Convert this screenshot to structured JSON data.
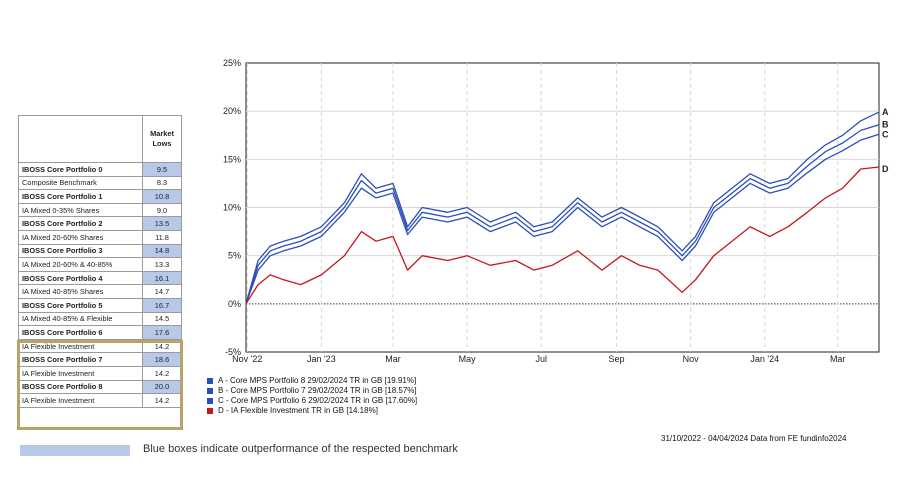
{
  "table": {
    "header": "Market Lows",
    "rows": [
      {
        "label": "IBOSS Core Portfolio 0",
        "value": "9.5",
        "bold": true,
        "highlight": true
      },
      {
        "label": "Composite Benchmark",
        "value": "8.3",
        "bold": false,
        "highlight": false
      },
      {
        "label": "IBOSS Core Portfolio 1",
        "value": "10.8",
        "bold": true,
        "highlight": true
      },
      {
        "label": "IA Mixed 0-35% Shares",
        "value": "9.0",
        "bold": false,
        "highlight": false
      },
      {
        "label": "IBOSS Core Portfolio 2",
        "value": "13.5",
        "bold": true,
        "highlight": true
      },
      {
        "label": "IA Mixed 20-60% Shares",
        "value": "11.8",
        "bold": false,
        "highlight": false
      },
      {
        "label": "IBOSS Core Portfolio 3",
        "value": "14.8",
        "bold": true,
        "highlight": true
      },
      {
        "label": "IA Mixed 20-60% & 40-85%",
        "value": "13.3",
        "bold": false,
        "highlight": false
      },
      {
        "label": "IBOSS Core Portfolio 4",
        "value": "16.1",
        "bold": true,
        "highlight": true
      },
      {
        "label": "IA Mixed 40-85% Shares",
        "value": "14.7",
        "bold": false,
        "highlight": false
      },
      {
        "label": "IBOSS Core Portfolio 5",
        "value": "16.7",
        "bold": true,
        "highlight": true
      },
      {
        "label": "IA Mixed 40-85% & Flexible",
        "value": "14.5",
        "bold": false,
        "highlight": false
      },
      {
        "label": "IBOSS Core Portfolio 6",
        "value": "17.6",
        "bold": true,
        "highlight": true
      },
      {
        "label": "IA Flexible Investment",
        "value": "14.2",
        "bold": false,
        "highlight": false
      },
      {
        "label": "IBOSS Core Portfolio 7",
        "value": "18.6",
        "bold": true,
        "highlight": true
      },
      {
        "label": "IA Flexible Investment",
        "value": "14.2",
        "bold": false,
        "highlight": false
      },
      {
        "label": "IBOSS Core Portfolio 8",
        "value": "20.0",
        "bold": true,
        "highlight": true
      },
      {
        "label": "IA Flexible Investment",
        "value": "14.2",
        "bold": false,
        "highlight": false
      }
    ]
  },
  "note": "Blue boxes indicate outperformance of the respected benchmark",
  "source": "31/10/2022 - 04/04/2024 Data from FE fundinfo2024",
  "colors": {
    "highlight": "#b7c8e8",
    "blue": "#2b4fb8",
    "red": "#c8161d",
    "gold": "#b8a46a"
  },
  "chart_data": {
    "type": "line",
    "x_range": [
      "2022-10-31",
      "2024-04-04"
    ],
    "ylim": [
      -5,
      25
    ],
    "yticks": [
      "25%",
      "20%",
      "15%",
      "10%",
      "5%",
      "0%",
      "-5%"
    ],
    "ytick_values": [
      25,
      20,
      15,
      10,
      5,
      0,
      -5
    ],
    "xtick_labels": [
      "Nov '22",
      "Jan '23",
      "Mar",
      "May",
      "Jul",
      "Sep",
      "Nov",
      "Jan '24",
      "Mar"
    ],
    "xtick_dates": [
      "2022-11-01",
      "2023-01-01",
      "2023-03-01",
      "2023-05-01",
      "2023-07-01",
      "2023-09-01",
      "2023-11-01",
      "2024-01-01",
      "2024-03-01"
    ],
    "grid": true,
    "series": [
      {
        "name": "A - Core MPS Portfolio 8 29/02/2024 TR in GB [19.91%]",
        "end_label": "A",
        "color": "#2b4fb8",
        "points": [
          [
            "2022-10-31",
            0
          ],
          [
            "2022-11-10",
            4.5
          ],
          [
            "2022-11-20",
            6
          ],
          [
            "2022-12-01",
            6.5
          ],
          [
            "2022-12-15",
            7
          ],
          [
            "2023-01-01",
            8
          ],
          [
            "2023-01-20",
            10.5
          ],
          [
            "2023-02-03",
            13.5
          ],
          [
            "2023-02-15",
            12
          ],
          [
            "2023-03-01",
            12.5
          ],
          [
            "2023-03-13",
            8
          ],
          [
            "2023-03-25",
            10
          ],
          [
            "2023-04-15",
            9.5
          ],
          [
            "2023-05-01",
            10
          ],
          [
            "2023-05-20",
            8.5
          ],
          [
            "2023-06-10",
            9.5
          ],
          [
            "2023-06-25",
            8
          ],
          [
            "2023-07-10",
            8.5
          ],
          [
            "2023-07-31",
            11
          ],
          [
            "2023-08-20",
            9
          ],
          [
            "2023-09-05",
            10
          ],
          [
            "2023-09-20",
            9
          ],
          [
            "2023-10-05",
            8
          ],
          [
            "2023-10-25",
            5.5
          ],
          [
            "2023-11-05",
            7
          ],
          [
            "2023-11-20",
            10.5
          ],
          [
            "2023-12-05",
            12
          ],
          [
            "2023-12-20",
            13.5
          ],
          [
            "2024-01-05",
            12.5
          ],
          [
            "2024-01-20",
            13
          ],
          [
            "2024-02-05",
            15
          ],
          [
            "2024-02-20",
            16.5
          ],
          [
            "2024-03-05",
            17.5
          ],
          [
            "2024-03-20",
            19
          ],
          [
            "2024-04-04",
            19.9
          ]
        ]
      },
      {
        "name": "B - Core MPS Portfolio 7 29/02/2024 TR in GB [18.57%]",
        "end_label": "B",
        "color": "#2b4fb8",
        "points": [
          [
            "2022-10-31",
            0
          ],
          [
            "2022-11-10",
            4
          ],
          [
            "2022-11-20",
            5.5
          ],
          [
            "2022-12-01",
            6
          ],
          [
            "2022-12-15",
            6.5
          ],
          [
            "2023-01-01",
            7.5
          ],
          [
            "2023-01-20",
            10
          ],
          [
            "2023-02-03",
            12.8
          ],
          [
            "2023-02-15",
            11.5
          ],
          [
            "2023-03-01",
            12
          ],
          [
            "2023-03-13",
            7.6
          ],
          [
            "2023-03-25",
            9.5
          ],
          [
            "2023-04-15",
            9
          ],
          [
            "2023-05-01",
            9.5
          ],
          [
            "2023-05-20",
            8
          ],
          [
            "2023-06-10",
            9
          ],
          [
            "2023-06-25",
            7.5
          ],
          [
            "2023-07-10",
            8
          ],
          [
            "2023-07-31",
            10.5
          ],
          [
            "2023-08-20",
            8.5
          ],
          [
            "2023-09-05",
            9.5
          ],
          [
            "2023-09-20",
            8.5
          ],
          [
            "2023-10-05",
            7.5
          ],
          [
            "2023-10-25",
            5
          ],
          [
            "2023-11-05",
            6.5
          ],
          [
            "2023-11-20",
            10
          ],
          [
            "2023-12-05",
            11.5
          ],
          [
            "2023-12-20",
            13
          ],
          [
            "2024-01-05",
            12
          ],
          [
            "2024-01-20",
            12.5
          ],
          [
            "2024-02-05",
            14.3
          ],
          [
            "2024-02-20",
            15.8
          ],
          [
            "2024-03-05",
            16.7
          ],
          [
            "2024-03-20",
            18
          ],
          [
            "2024-04-04",
            18.6
          ]
        ]
      },
      {
        "name": "C - Core MPS Portfolio 6 29/02/2024 TR in GB [17.60%]",
        "end_label": "C",
        "color": "#2b4fb8",
        "points": [
          [
            "2022-10-31",
            0
          ],
          [
            "2022-11-10",
            3.5
          ],
          [
            "2022-11-20",
            5
          ],
          [
            "2022-12-01",
            5.5
          ],
          [
            "2022-12-15",
            6
          ],
          [
            "2023-01-01",
            7
          ],
          [
            "2023-01-20",
            9.5
          ],
          [
            "2023-02-03",
            12
          ],
          [
            "2023-02-15",
            11
          ],
          [
            "2023-03-01",
            11.5
          ],
          [
            "2023-03-13",
            7.2
          ],
          [
            "2023-03-25",
            9
          ],
          [
            "2023-04-15",
            8.5
          ],
          [
            "2023-05-01",
            9
          ],
          [
            "2023-05-20",
            7.5
          ],
          [
            "2023-06-10",
            8.5
          ],
          [
            "2023-06-25",
            7
          ],
          [
            "2023-07-10",
            7.5
          ],
          [
            "2023-07-31",
            10
          ],
          [
            "2023-08-20",
            8
          ],
          [
            "2023-09-05",
            9
          ],
          [
            "2023-09-20",
            8
          ],
          [
            "2023-10-05",
            7
          ],
          [
            "2023-10-25",
            4.5
          ],
          [
            "2023-11-05",
            6
          ],
          [
            "2023-11-20",
            9.5
          ],
          [
            "2023-12-05",
            11
          ],
          [
            "2023-12-20",
            12.5
          ],
          [
            "2024-01-05",
            11.5
          ],
          [
            "2024-01-20",
            12
          ],
          [
            "2024-02-05",
            13.6
          ],
          [
            "2024-02-20",
            15
          ],
          [
            "2024-03-05",
            15.9
          ],
          [
            "2024-03-20",
            17
          ],
          [
            "2024-04-04",
            17.6
          ]
        ]
      },
      {
        "name": "D - IA Flexible Investment TR in GB [14.18%]",
        "end_label": "D",
        "color": "#c8161d",
        "points": [
          [
            "2022-10-31",
            0
          ],
          [
            "2022-11-10",
            2
          ],
          [
            "2022-11-20",
            3
          ],
          [
            "2022-12-01",
            2.5
          ],
          [
            "2022-12-15",
            2
          ],
          [
            "2023-01-01",
            3
          ],
          [
            "2023-01-20",
            5
          ],
          [
            "2023-02-03",
            7.5
          ],
          [
            "2023-02-15",
            6.5
          ],
          [
            "2023-03-01",
            7
          ],
          [
            "2023-03-13",
            3.5
          ],
          [
            "2023-03-25",
            5
          ],
          [
            "2023-04-15",
            4.5
          ],
          [
            "2023-05-01",
            5
          ],
          [
            "2023-05-20",
            4
          ],
          [
            "2023-06-10",
            4.5
          ],
          [
            "2023-06-25",
            3.5
          ],
          [
            "2023-07-10",
            4
          ],
          [
            "2023-07-31",
            5.5
          ],
          [
            "2023-08-20",
            3.5
          ],
          [
            "2023-09-05",
            5
          ],
          [
            "2023-09-20",
            4
          ],
          [
            "2023-10-05",
            3.5
          ],
          [
            "2023-10-25",
            1.2
          ],
          [
            "2023-11-05",
            2.5
          ],
          [
            "2023-11-20",
            5
          ],
          [
            "2023-12-05",
            6.5
          ],
          [
            "2023-12-20",
            8
          ],
          [
            "2024-01-05",
            7
          ],
          [
            "2024-01-20",
            8
          ],
          [
            "2024-02-05",
            9.5
          ],
          [
            "2024-02-20",
            11
          ],
          [
            "2024-03-05",
            12
          ],
          [
            "2024-03-20",
            14
          ],
          [
            "2024-04-04",
            14.2
          ]
        ]
      }
    ]
  }
}
